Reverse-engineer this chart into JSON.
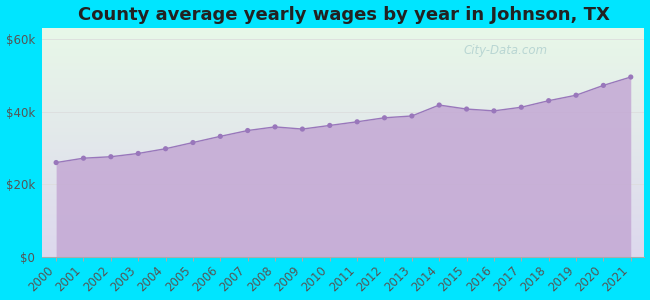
{
  "title": "County average yearly wages by year in Johnson, TX",
  "years": [
    2000,
    2001,
    2002,
    2003,
    2004,
    2005,
    2006,
    2007,
    2008,
    2009,
    2010,
    2011,
    2012,
    2013,
    2014,
    2015,
    2016,
    2017,
    2018,
    2019,
    2020,
    2021
  ],
  "wages": [
    26000,
    27200,
    27600,
    28500,
    29800,
    31500,
    33200,
    34800,
    35800,
    35200,
    36200,
    37200,
    38300,
    38800,
    41800,
    40700,
    40200,
    41200,
    43000,
    44500,
    47200,
    49500
  ],
  "yticks": [
    0,
    20000,
    40000,
    60000
  ],
  "ytick_labels": [
    "$0",
    "$20k",
    "$40k",
    "$60k"
  ],
  "ylim": [
    0,
    63000
  ],
  "fill_color": "#c4a8d4",
  "fill_alpha": 0.85,
  "line_color": "#9977bb",
  "marker_color": "#9977bb",
  "bg_outer": "#00e5ff",
  "bg_top_color": "#e8f8e8",
  "bg_bottom_color": "#ddd8ee",
  "watermark": "City-Data.com",
  "title_fontsize": 13,
  "tick_fontsize": 8.5,
  "grid_color": "#dddddd",
  "watermark_color": "#aacccc"
}
